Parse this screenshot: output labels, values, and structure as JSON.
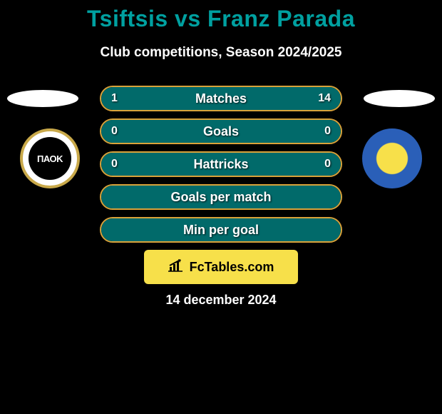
{
  "header": {
    "title": "Tsiftsis vs Franz Parada",
    "subtitle": "Club competitions, Season 2024/2025",
    "title_color": "#00a0a0"
  },
  "player_left": {
    "club_label": "ΠΑΟΚ",
    "badge_bg": "#ffffff",
    "badge_inner_bg": "#000000",
    "badge_border": "#c9a94a"
  },
  "player_right": {
    "badge_outer": "#2a5fb8",
    "badge_inner": "#f7e04a"
  },
  "stats": [
    {
      "label": "Matches",
      "left_value": "1",
      "right_value": "14",
      "left_pct": 7,
      "right_pct": 93,
      "show_values": true
    },
    {
      "label": "Goals",
      "left_value": "0",
      "right_value": "0",
      "left_pct": 0,
      "right_pct": 0,
      "show_values": true,
      "full_fill": true
    },
    {
      "label": "Hattricks",
      "left_value": "0",
      "right_value": "0",
      "left_pct": 0,
      "right_pct": 0,
      "show_values": true,
      "full_fill": true
    },
    {
      "label": "Goals per match",
      "left_value": "",
      "right_value": "",
      "left_pct": 0,
      "right_pct": 0,
      "show_values": false,
      "full_fill": true
    },
    {
      "label": "Min per goal",
      "left_value": "",
      "right_value": "",
      "left_pct": 0,
      "right_pct": 0,
      "show_values": false,
      "full_fill": true
    }
  ],
  "styling": {
    "bar_border_color": "#d9a23a",
    "bar_fill_color": "#016a6a",
    "background_color": "#000000",
    "text_color": "#ffffff"
  },
  "footer": {
    "logo_text": "FcTables.com",
    "logo_bg": "#f7e04a",
    "date": "14 december 2024"
  }
}
